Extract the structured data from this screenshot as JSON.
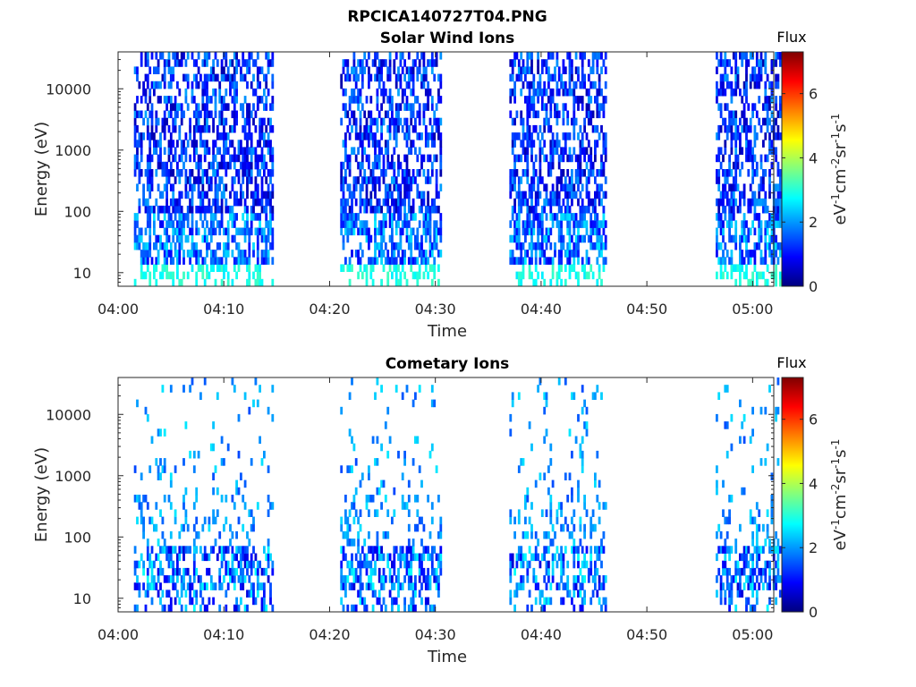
{
  "figure_title": "RPCICA140727T04.PNG",
  "chart_data": [
    {
      "type": "heatmap",
      "title": "Solar Wind Ions",
      "xlabel": "Time",
      "ylabel": "Energy (eV)",
      "x_range": [
        "04:00",
        "05:02"
      ],
      "x_ticks": [
        "04:00",
        "04:10",
        "04:20",
        "04:30",
        "04:40",
        "04:50",
        "05:00"
      ],
      "y_scale": "log",
      "y_range": [
        6,
        40000
      ],
      "y_ticks": [
        "10",
        "100",
        "1000",
        "10000"
      ],
      "colorbar": {
        "title": "Flux",
        "label": "eV-1cm-2sr-1s-1",
        "min": 0,
        "max": 7.3,
        "ticks": [
          "0",
          "2",
          "4",
          "6"
        ]
      },
      "data_intervals": [
        {
          "start": "04:01.5",
          "end": "04:14.5"
        },
        {
          "start": "04:21",
          "end": "04:30.5"
        },
        {
          "start": "04:37",
          "end": "04:46"
        },
        {
          "start": "04:56.5",
          "end": "05:02.5"
        }
      ]
    },
    {
      "type": "heatmap",
      "title": "Cometary Ions",
      "xlabel": "Time",
      "ylabel": "Energy (eV)",
      "x_range": [
        "04:00",
        "05:02"
      ],
      "x_ticks": [
        "04:00",
        "04:10",
        "04:20",
        "04:30",
        "04:40",
        "04:50",
        "05:00"
      ],
      "y_scale": "log",
      "y_range": [
        6,
        40000
      ],
      "y_ticks": [
        "10",
        "100",
        "1000",
        "10000"
      ],
      "colorbar": {
        "title": "Flux",
        "label": "eV-1cm-2sr-1s-1",
        "min": 0,
        "max": 7.3,
        "ticks": [
          "0",
          "2",
          "4",
          "6"
        ]
      },
      "data_intervals": [
        {
          "start": "04:01.5",
          "end": "04:14.5"
        },
        {
          "start": "04:21",
          "end": "04:30.5"
        },
        {
          "start": "04:37",
          "end": "04:46"
        },
        {
          "start": "04:56.5",
          "end": "05:02.5"
        }
      ]
    }
  ]
}
